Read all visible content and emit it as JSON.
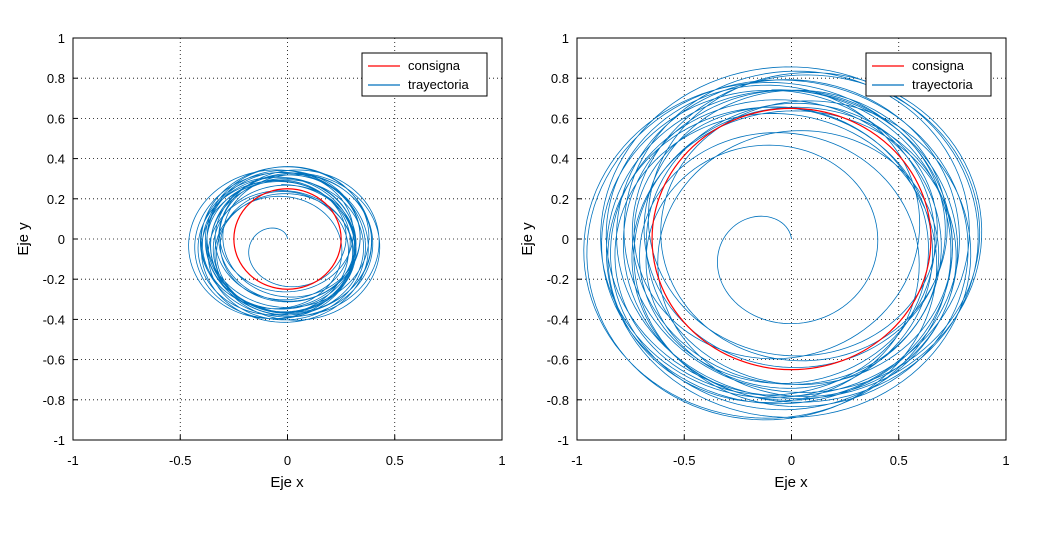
{
  "chart_data": [
    {
      "type": "line",
      "title": "",
      "xlabel": "Eje x",
      "ylabel": "Eje y",
      "xlim": [
        -1,
        1
      ],
      "ylim": [
        -1,
        1
      ],
      "xticks": [
        -1,
        -0.5,
        0,
        0.5,
        1
      ],
      "xtick_labels": [
        "-1",
        "-0.5",
        "0",
        "0.5",
        "1"
      ],
      "yticks": [
        1,
        0.8,
        0.6,
        0.4,
        0.2,
        0,
        -0.2,
        -0.4,
        -0.6,
        -0.8,
        -1
      ],
      "ytick_labels": [
        "1",
        "0.8",
        "0.6",
        "0.4",
        "0.2",
        "0",
        "-0.2",
        "-0.4",
        "-0.6",
        "-0.8",
        "-1"
      ],
      "grid": true,
      "legend_position": "top-right",
      "series": [
        {
          "name": "consigna",
          "color": "#ff0000",
          "shape": "circle",
          "center": [
            0,
            0
          ],
          "radius": 0.25
        },
        {
          "name": "trayectoria",
          "color": "#0072bd",
          "shape": "spiral-trajectory",
          "start": [
            0,
            0
          ],
          "x_range": [
            -0.45,
            0.42
          ],
          "y_range": [
            -0.43,
            0.38
          ]
        }
      ]
    },
    {
      "type": "line",
      "title": "",
      "xlabel": "Eje x",
      "ylabel": "Eje y",
      "xlim": [
        -1,
        1
      ],
      "ylim": [
        -1,
        1
      ],
      "xticks": [
        -1,
        -0.5,
        0,
        0.5,
        1
      ],
      "xtick_labels": [
        "-1",
        "-0.5",
        "0",
        "0.5",
        "1"
      ],
      "yticks": [
        1,
        0.8,
        0.6,
        0.4,
        0.2,
        0,
        -0.2,
        -0.4,
        -0.6,
        -0.8,
        -1
      ],
      "ytick_labels": [
        "1",
        "0.8",
        "0.6",
        "0.4",
        "0.2",
        "0",
        "-0.2",
        "-0.4",
        "-0.6",
        "-0.8",
        "-1"
      ],
      "grid": true,
      "legend_position": "top-right",
      "series": [
        {
          "name": "consigna",
          "color": "#ff0000",
          "shape": "circle",
          "center": [
            0,
            0
          ],
          "radius": 0.65
        },
        {
          "name": "trayectoria",
          "color": "#0072bd",
          "shape": "spiral-trajectory",
          "start": [
            0,
            0
          ],
          "x_range": [
            -0.95,
            0.9
          ],
          "y_range": [
            -0.92,
            0.88
          ]
        }
      ]
    }
  ]
}
